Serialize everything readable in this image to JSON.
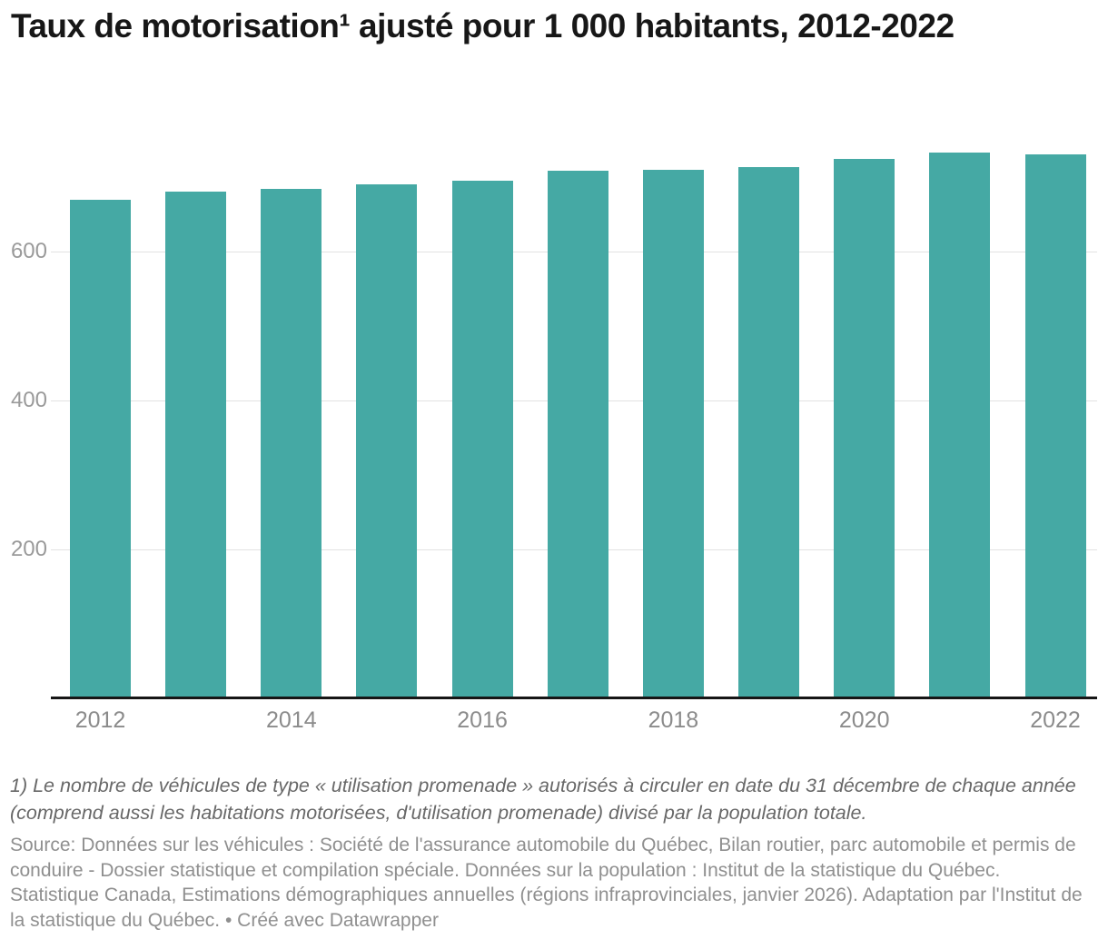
{
  "title": "Taux de motorisation¹ ajusté pour 1 000 habitants, 2012-2022",
  "chart_data": {
    "type": "bar",
    "title": "Taux de motorisation¹ ajusté pour 1 000 habitants, 2012-2022",
    "categories": [
      "2012",
      "2013",
      "2014",
      "2015",
      "2016",
      "2017",
      "2018",
      "2019",
      "2020",
      "2021",
      "2022"
    ],
    "values": [
      669,
      681,
      684,
      690,
      695,
      708,
      710,
      714,
      725,
      733,
      730
    ],
    "series": [
      {
        "name": "Taux de motorisation ajusté pour 1 000 habitants",
        "values": [
          669,
          681,
          684,
          690,
          695,
          708,
          710,
          714,
          725,
          733,
          730
        ]
      }
    ],
    "y_ticks": [
      200,
      400,
      600
    ],
    "ylim": [
      0,
      750
    ],
    "x_tick_labels": [
      "2012",
      "2014",
      "2016",
      "2018",
      "2020",
      "2022"
    ],
    "xlabel": "",
    "ylabel": "",
    "grid": true,
    "legend_position": "none",
    "bar_color": "#45a9a4",
    "axis_color": "#161616",
    "gridline_color": "#e2e2e2",
    "tick_label_color": "#9a9a9a"
  },
  "footnote": "1) Le nombre de véhicules de type « utilisation promenade » autorisés à circuler en date du 31 décembre de chaque année (comprend aussi les habitations motorisées, d'utilisation promenade) divisé par la population totale.",
  "source": "Source: Données sur les véhicules : Société de l'assurance automobile du Québec, Bilan routier, parc automobile et permis de conduire - Dossier statistique et compilation spéciale. Données sur la population : Institut de la statistique du Québec. Statistique Canada, Estimations démographiques annuelles (régions infraprovinciales, janvier 2026). Adaptation par l'Institut de la statistique du Québec. • Créé avec Datawrapper"
}
